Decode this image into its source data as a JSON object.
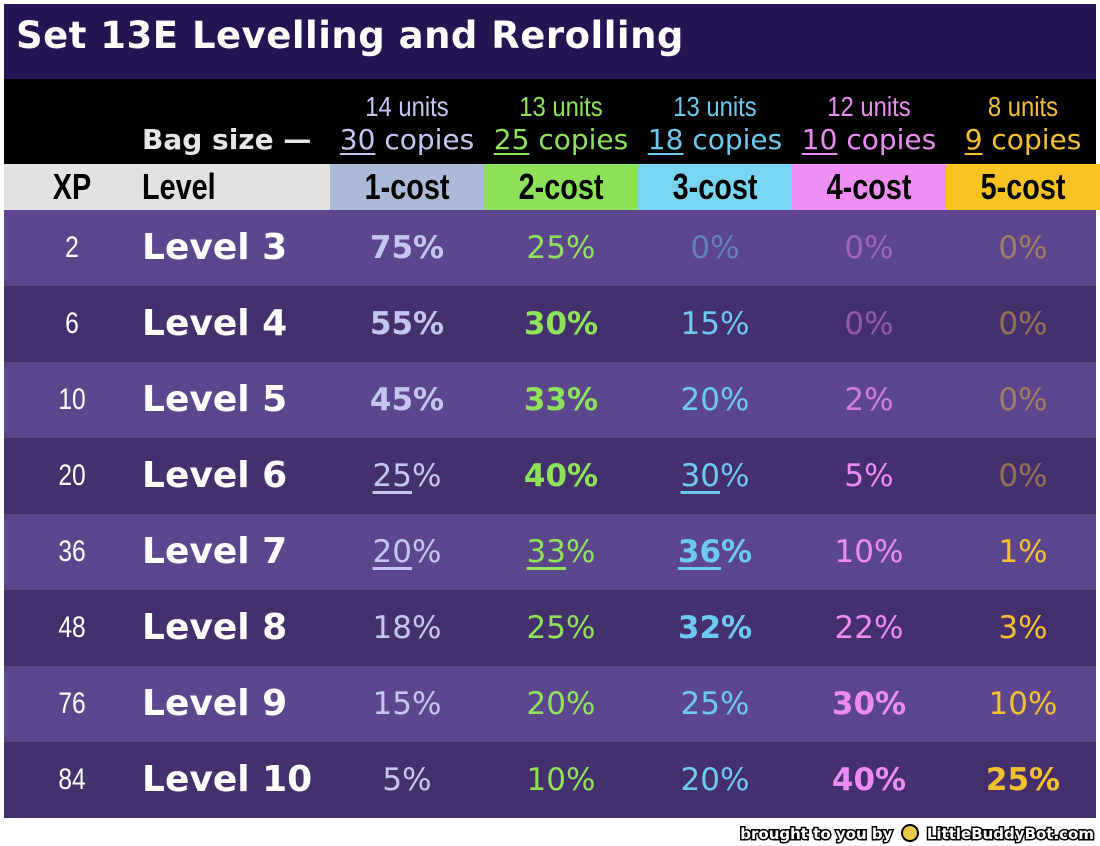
{
  "title": "Set 13E Levelling and Rerolling",
  "bag_label": "Bag size —",
  "headers": {
    "xp": "XP",
    "level": "Level"
  },
  "costs": [
    {
      "label": "1-cost",
      "units": "14 units",
      "copies_num": "30",
      "copies_word": " copies",
      "bg": "#a9bbd6",
      "color": "#c4c6f2"
    },
    {
      "label": "2-cost",
      "units": "13 units",
      "copies_num": "25",
      "copies_word": " copies",
      "bg": "#8de25a",
      "color": "#8ee35a"
    },
    {
      "label": "3-cost",
      "units": "13 units",
      "copies_num": "18",
      "copies_word": " copies",
      "bg": "#78d6f1",
      "color": "#6ccaf1"
    },
    {
      "label": "4-cost",
      "units": "12 units",
      "copies_num": "10",
      "copies_word": " copies",
      "bg": "#f08ff3",
      "color": "#ec8cf3"
    },
    {
      "label": "5-cost",
      "units": "8 units",
      "copies_num": "9",
      "copies_word": " copies",
      "bg": "#f9c421",
      "color": "#f5c030"
    }
  ],
  "rows": [
    {
      "xp": "2",
      "level": "Level 3",
      "pcts": [
        {
          "num": "75",
          "sym": "%",
          "w": "bold",
          "o": 1,
          "u": false
        },
        {
          "num": "25",
          "sym": "%",
          "w": "normal",
          "o": 1,
          "u": false
        },
        {
          "num": "0",
          "sym": "%",
          "w": "normal",
          "o": 0.45,
          "u": false
        },
        {
          "num": "0",
          "sym": "%",
          "w": "normal",
          "o": 0.45,
          "u": false
        },
        {
          "num": "0",
          "sym": "%",
          "w": "normal",
          "o": 0.45,
          "u": false
        }
      ]
    },
    {
      "xp": "6",
      "level": "Level 4",
      "pcts": [
        {
          "num": "55",
          "sym": "%",
          "w": "bold",
          "o": 1,
          "u": false
        },
        {
          "num": "30",
          "sym": "%",
          "w": "bold",
          "o": 1,
          "u": false
        },
        {
          "num": "15",
          "sym": "%",
          "w": "normal",
          "o": 1,
          "u": false
        },
        {
          "num": "0",
          "sym": "%",
          "w": "normal",
          "o": 0.45,
          "u": false
        },
        {
          "num": "0",
          "sym": "%",
          "w": "normal",
          "o": 0.45,
          "u": false
        }
      ]
    },
    {
      "xp": "10",
      "level": "Level 5",
      "pcts": [
        {
          "num": "45",
          "sym": "%",
          "w": "bold",
          "o": 1,
          "u": false
        },
        {
          "num": "33",
          "sym": "%",
          "w": "bold",
          "o": 1,
          "u": false
        },
        {
          "num": "20",
          "sym": "%",
          "w": "normal",
          "o": 1,
          "u": false
        },
        {
          "num": "2",
          "sym": "%",
          "w": "normal",
          "o": 0.8,
          "u": false
        },
        {
          "num": "0",
          "sym": "%",
          "w": "normal",
          "o": 0.45,
          "u": false
        }
      ]
    },
    {
      "xp": "20",
      "level": "Level 6",
      "pcts": [
        {
          "num": "25",
          "sym": "%",
          "w": "normal",
          "o": 1,
          "u": true
        },
        {
          "num": "40",
          "sym": "%",
          "w": "bold",
          "o": 1,
          "u": false
        },
        {
          "num": "30",
          "sym": "%",
          "w": "normal",
          "o": 1,
          "u": true
        },
        {
          "num": "5",
          "sym": "%",
          "w": "normal",
          "o": 1,
          "u": false
        },
        {
          "num": "0",
          "sym": "%",
          "w": "normal",
          "o": 0.45,
          "u": false
        }
      ]
    },
    {
      "xp": "36",
      "level": "Level 7",
      "pcts": [
        {
          "num": "20",
          "sym": "%",
          "w": "normal",
          "o": 1,
          "u": true
        },
        {
          "num": "33",
          "sym": "%",
          "w": "normal",
          "o": 1,
          "u": true
        },
        {
          "num": "36",
          "sym": "%",
          "w": "bold",
          "o": 1,
          "u": true
        },
        {
          "num": "10",
          "sym": "%",
          "w": "normal",
          "o": 1,
          "u": false
        },
        {
          "num": "1",
          "sym": "%",
          "w": "normal",
          "o": 1,
          "u": false
        }
      ]
    },
    {
      "xp": "48",
      "level": "Level 8",
      "pcts": [
        {
          "num": "18",
          "sym": "%",
          "w": "normal",
          "o": 1,
          "u": false
        },
        {
          "num": "25",
          "sym": "%",
          "w": "normal",
          "o": 1,
          "u": false
        },
        {
          "num": "32",
          "sym": "%",
          "w": "bold",
          "o": 1,
          "u": false
        },
        {
          "num": "22",
          "sym": "%",
          "w": "normal",
          "o": 1,
          "u": false
        },
        {
          "num": "3",
          "sym": "%",
          "w": "normal",
          "o": 1,
          "u": false
        }
      ]
    },
    {
      "xp": "76",
      "level": "Level 9",
      "pcts": [
        {
          "num": "15",
          "sym": "%",
          "w": "normal",
          "o": 1,
          "u": false
        },
        {
          "num": "20",
          "sym": "%",
          "w": "normal",
          "o": 1,
          "u": false
        },
        {
          "num": "25",
          "sym": "%",
          "w": "normal",
          "o": 1,
          "u": false
        },
        {
          "num": "30",
          "sym": "%",
          "w": "bold",
          "o": 1,
          "u": false
        },
        {
          "num": "10",
          "sym": "%",
          "w": "normal",
          "o": 1,
          "u": false
        }
      ]
    },
    {
      "xp": "84",
      "level": "Level 10",
      "pcts": [
        {
          "num": "5",
          "sym": "%",
          "w": "normal",
          "o": 1,
          "u": false
        },
        {
          "num": "10",
          "sym": "%",
          "w": "normal",
          "o": 1,
          "u": false
        },
        {
          "num": "20",
          "sym": "%",
          "w": "normal",
          "o": 1,
          "u": false
        },
        {
          "num": "40",
          "sym": "%",
          "w": "bold",
          "o": 1,
          "u": false
        },
        {
          "num": "25",
          "sym": "%",
          "w": "bold",
          "o": 1,
          "u": false
        }
      ]
    }
  ],
  "row_colors": [
    "#5c468e",
    "#45306e"
  ],
  "level_text_color": "#ffffff",
  "footer": {
    "prefix": "brought to you by",
    "brand": "LittleBuddyBot.com",
    "icon": "buddy-bot-icon"
  }
}
